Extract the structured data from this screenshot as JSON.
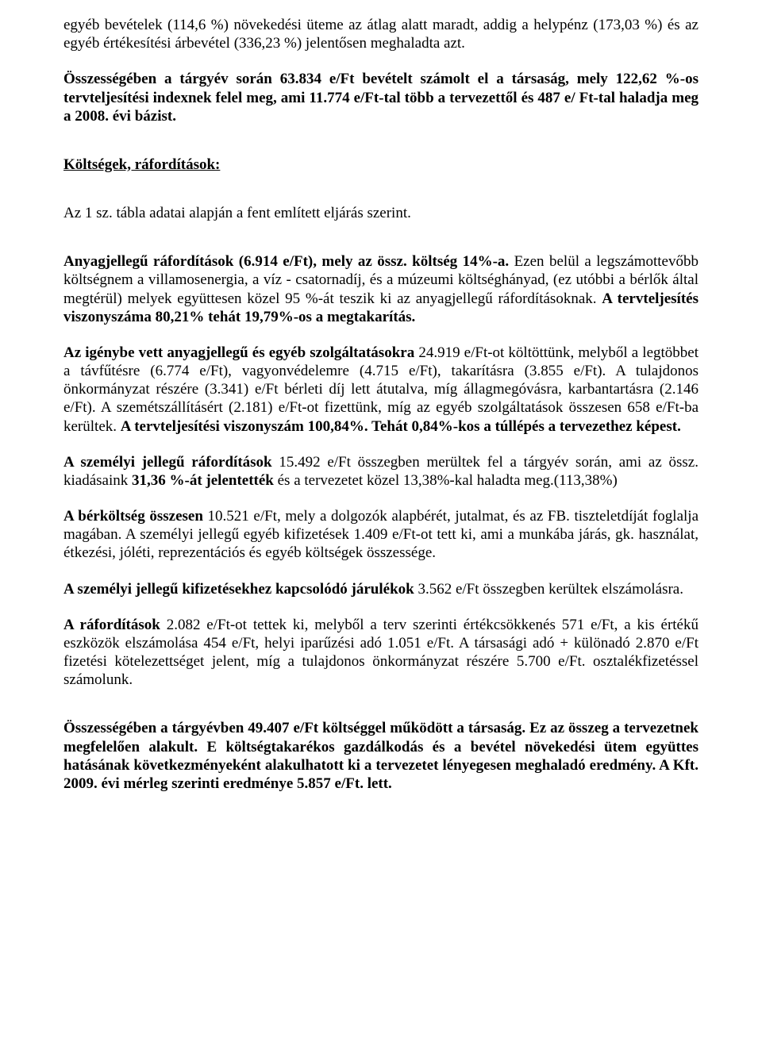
{
  "p1_a": "egyéb bevételek (114,6 %) növekedési üteme az átlag alatt maradt, addig a helypénz (173,03 %) és az  egyéb értékesítési árbevétel (336,23 %) jelentősen meghaladta azt.",
  "p2_a": "Összességében a tárgyév során 63.834 e/Ft bevételt számolt el a társaság, mely 122,62 %-os tervteljesítési indexnek felel meg, ami 11.774 e/Ft-tal több a tervezettől és  487 e/ Ft-tal haladja meg a 2008. évi bázist.",
  "section_heading": "Költségek, ráfordítások:",
  "p3_a": "Az 1 sz. tábla adatai alapján a fent említett eljárás szerint.",
  "p4_a": "Anyagjellegű ráfordítások (6.914 e/Ft), mely az össz. költség 14%-a.",
  "p4_b": " Ezen belül a legszámottevőbb költségnem a villamosenergia, a víz - csatornadíj, és a múzeumi költséghányad, (ez utóbbi a bérlők által megtérül)  melyek együttesen közel  95 %-át teszik ki az anyagjellegű ráfordításoknak. ",
  "p4_c": "A tervteljesítés viszonyszáma 80,21% tehát 19,79%-os a megtakarítás.",
  "p5_a": "Az igénybe vett anyagjellegű és egyéb szolgáltatásokra ",
  "p5_b": "24.919 e/Ft-ot költöttünk, melyből a legtöbbet a távfűtésre (6.774 e/Ft), vagyonvédelemre (4.715 e/Ft), takarításra (3.855 e/Ft). A tulajdonos önkormányzat részére (3.341) e/Ft bérleti díj lett átutalva, míg állagmegóvásra, karbantartásra (2.146 e/Ft). A szemétszállításért (2.181) e/Ft-ot fizettünk, míg az egyéb szolgáltatások összesen 658 e/Ft-ba kerültek. ",
  "p5_c": "A tervteljesítési viszonyszám 100,84%. Tehát 0,84%-kos a túllépés a tervezethez képest.",
  "p6_a": "A személyi jellegű ráfordítások ",
  "p6_b": "15.492 e/Ft összegben merültek fel a tárgyév során, ami az össz. kiadásaink ",
  "p6_c": "31,36 %-át jelentették",
  "p6_d": " és a tervezetet közel 13,38%-kal haladta meg.(113,38%)",
  "p7_a": "A bérköltség összesen ",
  "p7_b": "10.521 e/Ft, mely a dolgozók alapbérét, jutalmat, és az FB. tiszteletdíját foglalja magában. A személyi jellegű egyéb kifizetések 1.409 e/Ft-ot tett ki, ami a munkába járás, gk. használat, étkezési, jóléti, reprezentációs és egyéb költségek összessége.",
  "p8_a": "A személyi jellegű kifizetésekhez kapcsolódó járulékok ",
  "p8_b": "3.562 e/Ft összegben kerültek elszámolásra.",
  "p9_a": "A ráfordítások ",
  "p9_b": " 2.082 e/Ft-ot tettek ki, melyből a terv szerinti értékcsökkenés 571 e/Ft, a kis értékű eszközök elszámolása 454 e/Ft,  helyi iparűzési adó 1.051 e/Ft. A társasági adó + különadó 2.870 e/Ft fizetési kötelezettséget jelent, míg a tulajdonos önkormányzat részére 5.700 e/Ft.  osztalékfizetéssel számolunk.",
  "p10_a": "Összességében a tárgyévben 49.407 e/Ft költséggel működött a társaság. Ez az összeg  a tervezetnek megfelelően alakult. E költségtakarékos gazdálkodás és a bevétel növekedési ütem együttes hatásának következményeként alakulhatott ki a tervezetet lényegesen meghaladó eredmény. A Kft. 2009. évi mérleg szerinti eredménye 5.857 e/Ft. lett."
}
